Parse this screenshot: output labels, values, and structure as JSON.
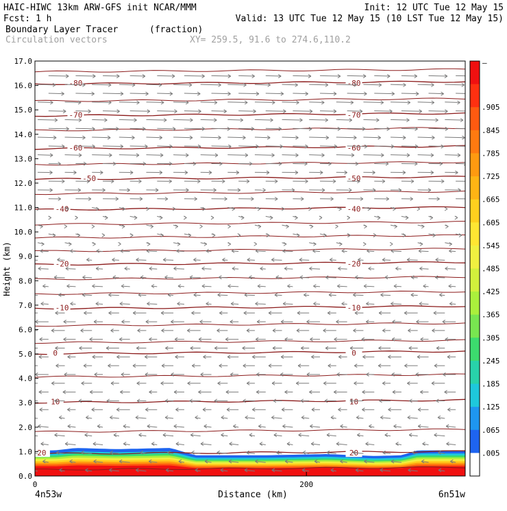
{
  "header": {
    "left_line1": "HAIC-HIWC 13km ARW-GFS init   NCAR/MMM",
    "left_line2": "Fcst:    1 h",
    "right_line1": "Init: 12 UTC Tue 12 May 15",
    "right_line2": "Valid: 13 UTC Tue 12 May 15 (10 LST Tue 12 May 15)",
    "field_name": "Boundary Layer Tracer",
    "field_units": "(fraction)",
    "vector_name": "Circulation vectors",
    "xy_text": "XY= 259.5, 91.6 to 274.6,110.2"
  },
  "chart_data": {
    "type": "heatmap",
    "description": "Vertical cross-section: boundary layer tracer (shaded) with temperature contours and circulation vectors",
    "xlabel": "Distance (km)",
    "ylabel": "Height (km)",
    "x_start_label": "4n53w",
    "x_end_label": "6n51w",
    "xlim": [
      0,
      317
    ],
    "ylim": [
      0.0,
      17.0
    ],
    "x_ticks": [
      {
        "value": 0,
        "label": "0"
      },
      {
        "value": 200,
        "label": "200"
      }
    ],
    "y_ticks": [
      "0.0",
      "1.0",
      "2.0",
      "3.0",
      "4.0",
      "5.0",
      "6.0",
      "7.0",
      "8.0",
      "9.0",
      "10.0",
      "11.0",
      "12.0",
      "13.0",
      "14.0",
      "15.0",
      "16.0",
      "17.0"
    ],
    "colorbar": {
      "top_label": "–",
      "labels": [
        ".905",
        ".845",
        ".785",
        ".725",
        ".665",
        ".605",
        ".545",
        ".485",
        ".425",
        ".365",
        ".305",
        ".245",
        ".185",
        ".125",
        ".065",
        ".005"
      ],
      "colors": [
        "#f01010",
        "#ff3010",
        "#ff5a10",
        "#ff7a10",
        "#ff9a10",
        "#ffb414",
        "#ffd01e",
        "#ffe632",
        "#f0f040",
        "#d2f03c",
        "#aaf03c",
        "#78e650",
        "#3cdc6e",
        "#28d2aa",
        "#1ec8dc",
        "#1e96f0",
        "#1e64f0",
        "#ffffff"
      ]
    },
    "tracer_top_height_km": [
      {
        "x": 0,
        "top": 1.05
      },
      {
        "x": 15,
        "top": 1.05
      },
      {
        "x": 30,
        "top": 1.15
      },
      {
        "x": 60,
        "top": 1.1
      },
      {
        "x": 100,
        "top": 1.15
      },
      {
        "x": 118,
        "top": 0.85
      },
      {
        "x": 170,
        "top": 0.85
      },
      {
        "x": 215,
        "top": 0.9
      },
      {
        "x": 250,
        "top": 0.82
      },
      {
        "x": 270,
        "top": 0.85
      },
      {
        "x": 282,
        "top": 1.05
      },
      {
        "x": 317,
        "top": 1.05
      }
    ],
    "temperature_contours": [
      {
        "label": "-80",
        "height_km": 16.1,
        "label_x": [
          30,
          235
        ]
      },
      {
        "label": "-70",
        "height_km": 14.8,
        "label_x": [
          30,
          235
        ]
      },
      {
        "label": "-60",
        "height_km": 13.45,
        "label_x": [
          30,
          235
        ]
      },
      {
        "label": "-50",
        "height_km": 12.2,
        "label_x": [
          40,
          235
        ]
      },
      {
        "label": "-40",
        "height_km": 10.95,
        "label_x": [
          20,
          235
        ]
      },
      {
        "label": "-20",
        "height_km": 8.7,
        "label_x": [
          20,
          235
        ]
      },
      {
        "label": "-10",
        "height_km": 6.9,
        "label_x": [
          20,
          235
        ]
      },
      {
        "label": "0",
        "height_km": 5.05,
        "label_x": [
          15,
          235
        ]
      },
      {
        "label": "10",
        "height_km": 3.05,
        "label_x": [
          15,
          235
        ]
      },
      {
        "label": "20",
        "height_km": 0.95,
        "label_x": [
          5,
          235
        ]
      }
    ],
    "extra_contour_heights_km": [
      16.6,
      15.4,
      14.2,
      12.8,
      11.6,
      10.35,
      9.8,
      9.25,
      8.1,
      7.5,
      6.2,
      5.5,
      4.1,
      1.85,
      0.3
    ]
  }
}
